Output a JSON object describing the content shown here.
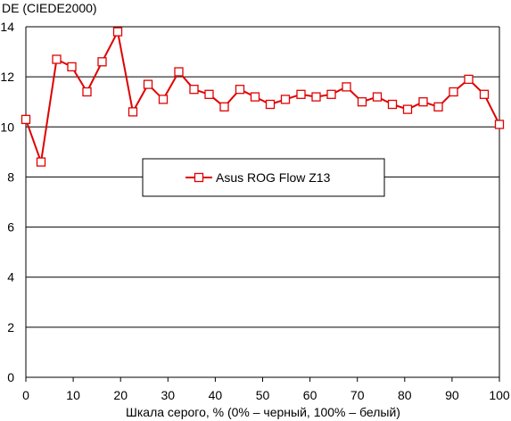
{
  "chart_data": {
    "type": "line",
    "title": "",
    "ylabel": "DE (CIEDE2000)",
    "xlabel": "Шкала серого, % (0% – черный, 100% – белый)",
    "xlim": [
      0,
      100
    ],
    "ylim": [
      0,
      14
    ],
    "x_ticks": [
      "0",
      "10",
      "20",
      "30",
      "40",
      "50",
      "60",
      "70",
      "80",
      "90",
      "100"
    ],
    "y_ticks": [
      "0",
      "2",
      "4",
      "6",
      "8",
      "10",
      "12",
      "14"
    ],
    "grid": "horizontal",
    "legend_position": "center",
    "series": [
      {
        "name": "Asus ROG Flow Z13",
        "color": "#e00000",
        "marker": "square-open",
        "x": [
          0,
          3.2,
          6.5,
          9.7,
          12.9,
          16.1,
          19.4,
          22.6,
          25.8,
          29,
          32.3,
          35.5,
          38.7,
          41.9,
          45.2,
          48.4,
          51.6,
          54.8,
          58.1,
          61.3,
          64.5,
          67.7,
          71,
          74.2,
          77.4,
          80.6,
          83.9,
          87.1,
          90.3,
          93.5,
          96.8,
          100
        ],
        "y": [
          10.3,
          8.6,
          12.7,
          12.4,
          11.4,
          12.6,
          13.8,
          10.6,
          11.7,
          11.1,
          12.2,
          11.5,
          11.3,
          10.8,
          11.5,
          11.2,
          10.9,
          11.1,
          11.3,
          11.2,
          11.3,
          11.6,
          11.0,
          11.2,
          10.9,
          10.7,
          11.0,
          10.8,
          11.4,
          11.9,
          11.3,
          10.1
        ]
      }
    ]
  }
}
